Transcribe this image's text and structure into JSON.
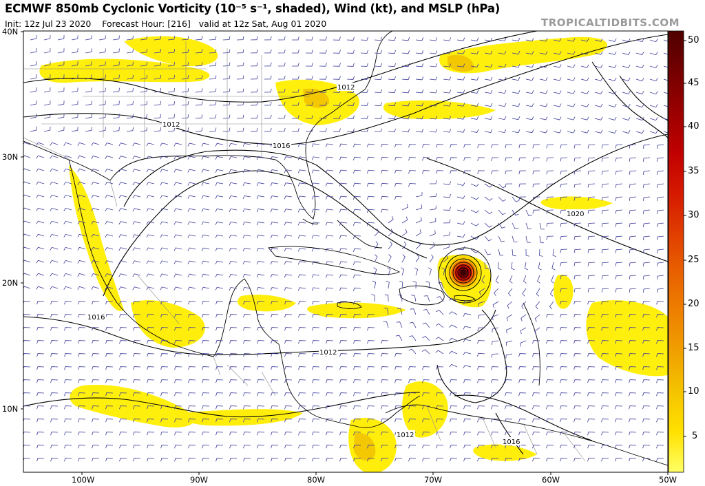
{
  "header": {
    "title": "ECMWF 850mb Cyclonic Vorticity (10⁻⁵ s⁻¹, shaded), Wind (kt), and MSLP (hPa)",
    "init": "Init: 12z Jul 23 2020",
    "forecast_hour": "Forecast Hour: [216]",
    "valid": "valid at 12z Sat, Aug 01 2020",
    "brand": "TROPICALTIDBITS.COM"
  },
  "map": {
    "region": "Gulf of Mexico, Caribbean Sea and western Atlantic",
    "lat_range": [
      5,
      40
    ],
    "lon_range": [
      -105,
      -50
    ],
    "lat_labels": [
      "40N",
      "30N",
      "20N",
      "10N"
    ],
    "lon_labels": [
      "100W",
      "90W",
      "80W",
      "70W",
      "60W",
      "50W"
    ],
    "isobar_labels": [
      "1012",
      "1012",
      "1016",
      "1020",
      "1016",
      "1012",
      "1012",
      "1016"
    ],
    "colors": {
      "vorticity_low": "#ffee00",
      "vorticity_mid": "#f2c200",
      "vorticity_high": "#e03000",
      "vorticity_max": "#5a0000",
      "isobar": "#000000",
      "coastline": "#000000",
      "wind_barb": "#3a3a9a",
      "border": "#888888"
    },
    "features": [
      {
        "name": "cyclone-center",
        "lat": 20.7,
        "lon": -67.4,
        "note": "tight closed isobars, peak vorticity above 50"
      }
    ]
  },
  "colorbar": {
    "ticks": [
      "50",
      "45",
      "40",
      "35",
      "30",
      "25",
      "20",
      "15",
      "10",
      "5"
    ],
    "range": [
      1,
      51
    ],
    "stops": [
      "#ffff66",
      "#ffe100",
      "#f5c400",
      "#f0a000",
      "#ee8000",
      "#e86000",
      "#e03c00",
      "#d41800",
      "#c00000",
      "#9a0000",
      "#740000",
      "#4f0000"
    ]
  }
}
